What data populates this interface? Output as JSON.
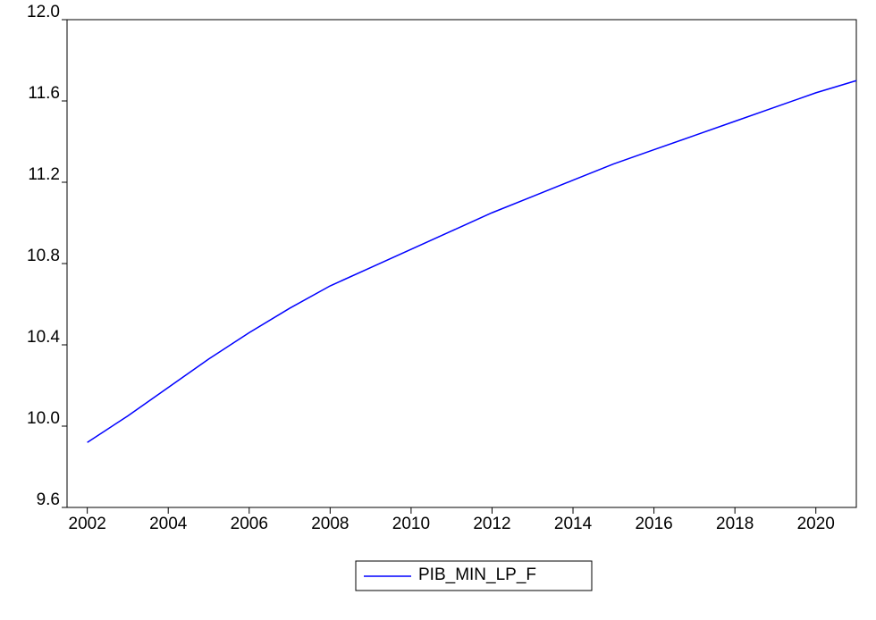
{
  "chart_data": {
    "type": "line",
    "x": [
      2002,
      2003,
      2004,
      2005,
      2006,
      2007,
      2008,
      2009,
      2010,
      2011,
      2012,
      2013,
      2014,
      2015,
      2016,
      2017,
      2018,
      2019,
      2020,
      2021
    ],
    "series": [
      {
        "name": "PIB_MIN_LP_F",
        "color": "#0000ff",
        "values": [
          9.92,
          10.05,
          10.19,
          10.33,
          10.46,
          10.58,
          10.69,
          10.78,
          10.87,
          10.96,
          11.05,
          11.13,
          11.21,
          11.29,
          11.36,
          11.43,
          11.5,
          11.57,
          11.64,
          11.7
        ]
      }
    ],
    "xlim": [
      2001.5,
      2021
    ],
    "xticks": [
      2002,
      2004,
      2006,
      2008,
      2010,
      2012,
      2014,
      2016,
      2018,
      2020
    ],
    "ylim": [
      9.6,
      12
    ],
    "yticks": [
      9.6,
      {
        "value": 10,
        "label": "10.0"
      },
      10.4,
      10.8,
      11.2,
      11.6,
      {
        "value": 12,
        "label": "12.0"
      }
    ],
    "legend": "bottom"
  }
}
